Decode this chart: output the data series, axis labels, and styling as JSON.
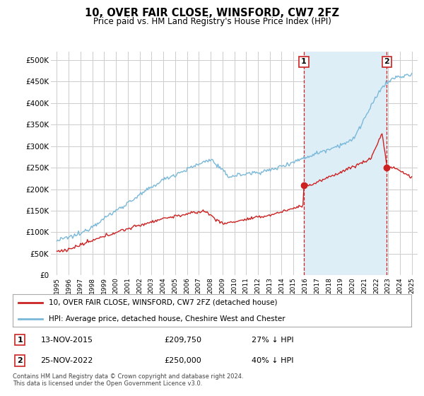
{
  "title": "10, OVER FAIR CLOSE, WINSFORD, CW7 2FZ",
  "subtitle": "Price paid vs. HM Land Registry's House Price Index (HPI)",
  "legend_line1": "10, OVER FAIR CLOSE, WINSFORD, CW7 2FZ (detached house)",
  "legend_line2": "HPI: Average price, detached house, Cheshire West and Chester",
  "annotation1_label": "1",
  "annotation1_date": "13-NOV-2015",
  "annotation1_price": "£209,750",
  "annotation1_hpi": "27% ↓ HPI",
  "annotation2_label": "2",
  "annotation2_date": "25-NOV-2022",
  "annotation2_price": "£250,000",
  "annotation2_hpi": "40% ↓ HPI",
  "footnote": "Contains HM Land Registry data © Crown copyright and database right 2024.\nThis data is licensed under the Open Government Licence v3.0.",
  "sale1_x": 2015.88,
  "sale1_y": 209750,
  "sale2_x": 2022.9,
  "sale2_y": 250000,
  "vline1_x": 2015.88,
  "vline2_x": 2022.9,
  "hpi_color": "#7ab8d9",
  "hpi_shade_color": "#deeef7",
  "price_color": "#cc2222",
  "vline_color": "#cc2222",
  "ylim_min": 0,
  "ylim_max": 520000,
  "yticks": [
    0,
    50000,
    100000,
    150000,
    200000,
    250000,
    300000,
    350000,
    400000,
    450000,
    500000
  ],
  "ytick_labels": [
    "£0",
    "£50K",
    "£100K",
    "£150K",
    "£200K",
    "£250K",
    "£300K",
    "£350K",
    "£400K",
    "£450K",
    "£500K"
  ],
  "xlim_min": 1994.5,
  "xlim_max": 2025.5,
  "background_color": "#ffffff",
  "grid_color": "#cccccc"
}
